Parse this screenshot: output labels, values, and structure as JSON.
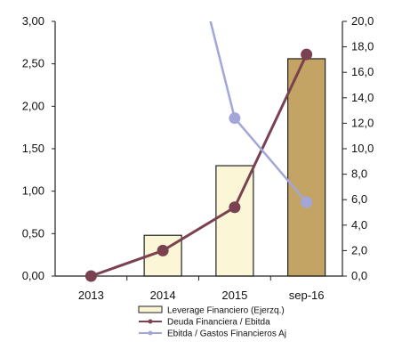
{
  "chart_data": {
    "type": "bar",
    "title": "",
    "xlabel": "",
    "ylabel": "",
    "categories": [
      "2013",
      "2014",
      "2015",
      "sep-16"
    ],
    "ylim_left": [
      0,
      3
    ],
    "ylim_right": [
      0,
      20
    ],
    "yticks_left": [
      "0,00",
      "0,50",
      "1,00",
      "1,50",
      "2,00",
      "2,50",
      "3,00"
    ],
    "yticks_right": [
      "0,0",
      "2,0",
      "4,0",
      "6,0",
      "8,0",
      "10,0",
      "12,0",
      "14,0",
      "16,0",
      "18,0",
      "20,0"
    ],
    "grid": false,
    "legend_position": "bottom",
    "series": [
      {
        "name": "Leverage Financiero (Ejerzq.)",
        "kind": "bar",
        "axis": "left",
        "values": [
          0,
          0.48,
          1.3,
          2.56
        ],
        "colors": [
          "#fbf6d6",
          "#fbf6d6",
          "#fbf6d6",
          "#c4a464"
        ]
      },
      {
        "name": "Deuda Financiera / Ebitda",
        "kind": "line",
        "axis": "right",
        "values": [
          0,
          2.0,
          5.4,
          17.4
        ],
        "color": "#7a4150"
      },
      {
        "name": "Ebitda / Gastos Financieros Aj",
        "kind": "line",
        "axis": "right",
        "values": [
          null,
          35.0,
          12.4,
          5.8
        ],
        "color": "#a3a6d8"
      }
    ]
  }
}
